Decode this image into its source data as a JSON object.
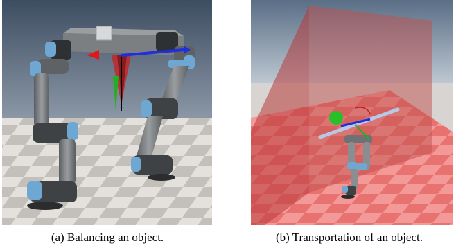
{
  "figures": [
    {
      "caption": "(a) Balancing an object."
    },
    {
      "caption": "(b) Transportation of an object."
    }
  ],
  "colors": {
    "sky_top": "#3a4a5e",
    "sky_bottom": "#8a97a6",
    "floor_light": "#e6e2de",
    "floor_dark": "#bdb9b5",
    "robot_gray": "#6e7275",
    "robot_dark": "#3b3e40",
    "joint_blue": "#6ea8d2",
    "wall_red": "#c0504d",
    "floor_red": "#f08a88",
    "axis_red": "#e01818",
    "axis_green": "#22b022",
    "axis_blue": "#1e2ee0",
    "sphere_green": "#28c028"
  },
  "icons": [
    "robot-arm-left",
    "robot-arm-right",
    "object-tray",
    "coordinate-frame-axes",
    "green-target-sphere",
    "transparent-red-plane"
  ]
}
